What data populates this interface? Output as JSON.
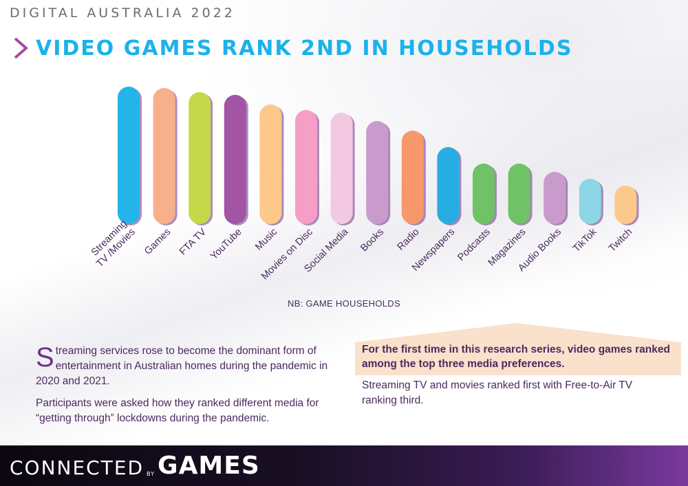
{
  "kicker": "DIGITAL AUSTRALIA 2022",
  "headline": "VIDEO GAMES RANK 2ND IN HOUSEHOLDS",
  "chart_data": {
    "type": "bar",
    "categories": [
      "Streaming TV /Movies",
      "Games",
      "FTA TV",
      "YouTube",
      "Music",
      "Movies on Disc",
      "Social Media",
      "Books",
      "Radio",
      "Newspapers",
      "Podcasts",
      "Magazines",
      "Audio Books",
      "TikTok",
      "Twitch"
    ],
    "category_lines": [
      [
        "Streaming",
        "TV /Movies"
      ],
      [
        "Games"
      ],
      [
        "FTA TV"
      ],
      [
        "YouTube"
      ],
      [
        "Music"
      ],
      [
        "Movies on Disc"
      ],
      [
        "Social Media"
      ],
      [
        "Books"
      ],
      [
        "Radio"
      ],
      [
        "Newspapers"
      ],
      [
        "Podcasts"
      ],
      [
        "Magazines"
      ],
      [
        "Audio Books"
      ],
      [
        "TikTok"
      ],
      [
        "Twitch"
      ]
    ],
    "values": [
      100,
      99,
      96,
      94,
      87,
      83,
      81,
      75,
      68,
      56,
      44,
      44,
      38,
      33,
      28
    ],
    "colors": [
      "#23b4ea",
      "#f7b089",
      "#c4d94a",
      "#a155a3",
      "#fdc98a",
      "#f59ec6",
      "#f3c9e1",
      "#c99bcc",
      "#f7976a",
      "#27ade4",
      "#6fc266",
      "#6fc266",
      "#c99bcc",
      "#8dd6e6",
      "#fdc98a"
    ],
    "ylim": [
      0,
      100
    ],
    "note": "NB: GAME  HOUSEHOLDS"
  },
  "body_left": {
    "dropcap": "S",
    "p1_rest": "treaming services rose to become the dominant form of entertainment in Australian homes during the pandemic in 2020 and 2021.",
    "p2": "Participants were asked how they ranked different media for “getting through” lockdowns during the pandemic."
  },
  "body_right": {
    "highlight": "For the first time in this research series, video games ranked among the top three media preferences.",
    "p1": "Streaming TV and movies ranked first with Free-to-Air TV ranking third."
  },
  "footer": {
    "logo_connected": "CONNECTED",
    "logo_by": "BY",
    "logo_games": "GAMES"
  },
  "colors": {
    "accent": "#1bb2ea",
    "chevron": "#a64ca6",
    "text": "#4a2a5e",
    "highlight_bg": "#f9e1cc"
  }
}
